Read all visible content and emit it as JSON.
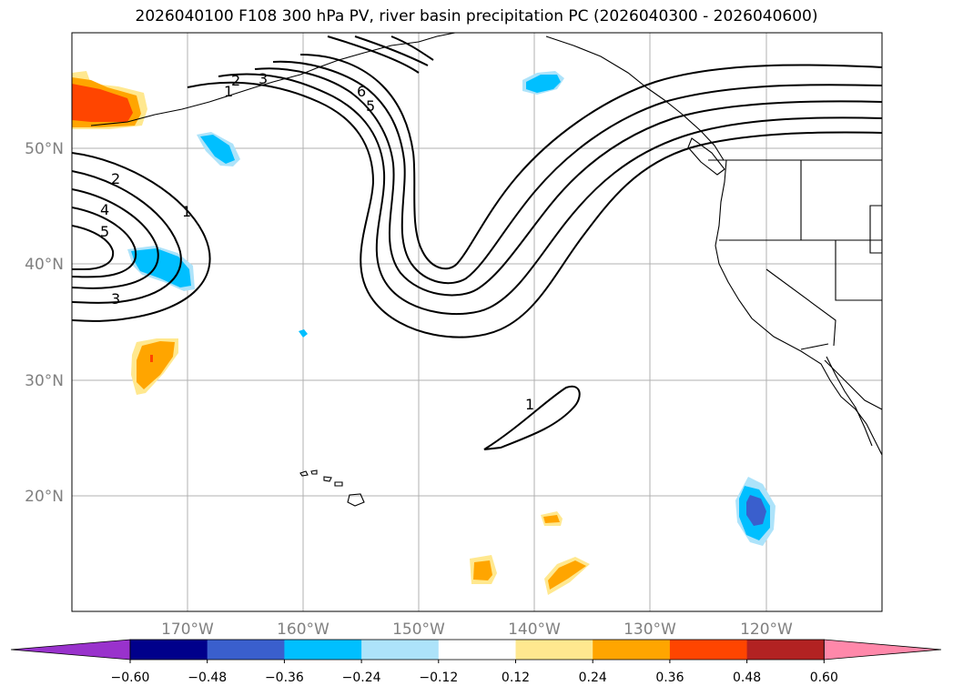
{
  "title": "2026040100 F108 300 hPa PV, river basin precipitation PC (2026040300 - 2026040600)",
  "lat_labels": [
    "50°N",
    "40°N",
    "30°N",
    "20°N"
  ],
  "lon_labels": [
    "170°W",
    "160°W",
    "150°W",
    "140°W",
    "130°W",
    "120°W"
  ],
  "contour_labels": [
    "2",
    "3",
    "6",
    "5",
    "1",
    "2",
    "4",
    "5",
    "1",
    "3",
    "1"
  ],
  "colorbar": {
    "ticks": [
      "−0.60",
      "−0.48",
      "−0.36",
      "−0.24",
      "−0.12",
      "0.12",
      "0.24",
      "0.36",
      "0.48",
      "0.60"
    ],
    "colors": [
      "#9932cc",
      "#00008b",
      "#3a5fcd",
      "#00bfff",
      "#ade3fa",
      "#ffffff",
      "#ffe88f",
      "#ffa500",
      "#ff4500",
      "#b22222",
      "#ff88aa"
    ]
  },
  "colors": {
    "gridline": "#b0b0b0",
    "contour": "#000000"
  }
}
